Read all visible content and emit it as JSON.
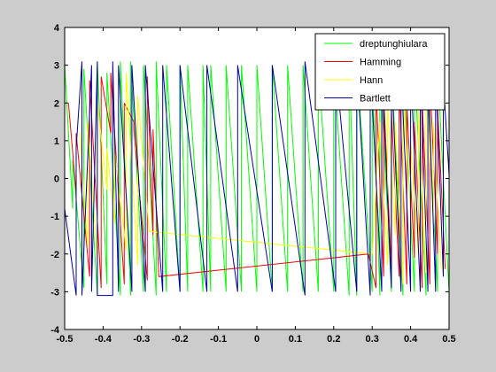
{
  "chart_data": {
    "type": "line",
    "title": "",
    "xlabel": "",
    "ylabel": "",
    "xlim": [
      -0.5,
      0.5
    ],
    "ylim": [
      -4,
      4
    ],
    "xticks": [
      -0.5,
      -0.4,
      -0.3,
      -0.2,
      -0.1,
      0,
      0.1,
      0.2,
      0.3,
      0.4,
      0.5
    ],
    "xtick_labels": [
      "-0.5",
      "-0.4",
      "-0.3",
      "-0.2",
      "-0.1",
      "0",
      "0.1",
      "0.2",
      "0.3",
      "0.4",
      "0.5"
    ],
    "yticks": [
      -4,
      -3,
      -2,
      -1,
      0,
      1,
      2,
      3,
      4
    ],
    "ytick_labels": [
      "-4",
      "-3",
      "-2",
      "-1",
      "0",
      "1",
      "2",
      "3",
      "4"
    ],
    "grid": false,
    "legend_position": "top-right",
    "background": "#cccccc",
    "axes_background": "#ffffff",
    "series": [
      {
        "name": "dreptunghiulara",
        "color": "#00ff00",
        "x": [
          -0.5,
          -0.479,
          -0.479,
          -0.45,
          -0.45,
          -0.415,
          -0.415,
          -0.39,
          -0.39,
          -0.355,
          -0.355,
          -0.328,
          -0.328,
          -0.295,
          -0.295,
          -0.262,
          -0.262,
          -0.235,
          -0.235,
          -0.2,
          -0.2,
          -0.18,
          -0.18,
          -0.14,
          -0.14,
          -0.12,
          -0.12,
          -0.08,
          -0.08,
          -0.04,
          -0.04,
          0,
          0,
          0.04,
          0.04,
          0.08,
          0.08,
          0.12,
          0.12,
          0.16,
          0.16,
          0.2,
          0.2,
          0.24,
          0.24,
          0.26,
          0.26,
          0.3,
          0.3,
          0.32,
          0.32,
          0.35,
          0.35,
          0.38,
          0.38,
          0.41,
          0.41,
          0.44,
          0.44,
          0.47,
          0.47,
          0.5
        ],
        "y": [
          3.0,
          -0.8,
          0.5,
          -2.9,
          2.9,
          -3.1,
          3.1,
          -2.8,
          2.8,
          -3.1,
          3.1,
          -3.1,
          3.1,
          -3.0,
          3.0,
          -3.1,
          3.1,
          -3.0,
          3.0,
          -3.0,
          3.0,
          -3.0,
          3.0,
          -3.0,
          3.0,
          -3.0,
          3.0,
          -3.0,
          3.0,
          -3.0,
          3.0,
          -3.0,
          3.0,
          -3.0,
          3.0,
          -3.0,
          3.0,
          -3.0,
          3.0,
          -3.0,
          3.0,
          -3.0,
          3.0,
          -3.1,
          3.1,
          -3.1,
          3.1,
          -3.0,
          3.0,
          -3.1,
          3.1,
          -3.0,
          3.0,
          -3.1,
          3.1,
          -3.0,
          3.0,
          -3.1,
          3.1,
          -3.0,
          3.0,
          -3.0
        ]
      },
      {
        "name": "Hamming",
        "color": "#ff0000",
        "x": [
          -0.49,
          -0.47,
          -0.47,
          -0.435,
          -0.435,
          -0.405,
          -0.405,
          -0.38,
          -0.38,
          -0.345,
          -0.345,
          -0.32,
          -0.32,
          -0.285,
          -0.285,
          -0.27,
          -0.27,
          -0.255,
          0.29,
          0.31,
          0.31,
          0.33,
          0.33,
          0.35,
          0.35,
          0.37,
          0.37,
          0.39,
          0.39,
          0.41,
          0.41,
          0.43,
          0.43,
          0.45,
          0.45,
          0.47,
          0.47,
          0.49
        ],
        "y": [
          2.0,
          -0.4,
          1.2,
          -2.6,
          2.6,
          -2.9,
          2.7,
          1.2,
          2.8,
          -2.8,
          2.0,
          1.5,
          1.3,
          -2.7,
          2.7,
          -1.5,
          1.3,
          -2.6,
          -2.0,
          -2.9,
          2.5,
          -2.6,
          2.2,
          -2.4,
          1.8,
          -2.6,
          2.6,
          -2.8,
          2.0,
          -2.1,
          1.5,
          -2.9,
          2.1,
          -2.8,
          2.7,
          -2.0,
          1.9,
          -2.4
        ]
      },
      {
        "name": "Hann",
        "color": "#ffff00",
        "x": [
          -0.46,
          -0.44,
          -0.44,
          -0.415,
          -0.415,
          -0.39,
          -0.39,
          -0.37,
          -0.37,
          -0.34,
          -0.34,
          -0.31,
          -0.31,
          -0.28,
          0.3,
          0.32,
          0.32,
          0.34,
          0.34,
          0.36,
          0.36,
          0.38,
          0.38,
          0.4,
          0.4,
          0.42,
          0.42,
          0.44,
          0.44,
          0.46,
          0.46,
          0.48
        ],
        "y": [
          1.2,
          -1.8,
          1.5,
          -2.2,
          2.0,
          -0.3,
          0.8,
          -1.2,
          0.8,
          -1.9,
          2.8,
          -2.3,
          2.2,
          -1.4,
          -2.0,
          1.5,
          1.2,
          -2.3,
          2.0,
          -1.5,
          1.5,
          -2.8,
          2.3,
          -1.0,
          1.0,
          -2.0,
          1.8,
          -2.5,
          2.6,
          -1.2,
          1.5,
          -2.4
        ]
      },
      {
        "name": "Bartlett",
        "color": "#0000aa",
        "x": [
          -0.5,
          -0.47,
          -0.47,
          -0.455,
          -0.455,
          -0.43,
          -0.43,
          -0.415,
          -0.415,
          -0.375,
          -0.375,
          -0.36,
          -0.36,
          -0.325,
          -0.325,
          -0.29,
          -0.29,
          -0.245,
          -0.245,
          -0.2,
          -0.2,
          -0.13,
          -0.13,
          -0.05,
          -0.05,
          0.04,
          0.04,
          0.125,
          0.125,
          0.205,
          0.205,
          0.26,
          0.26,
          0.295,
          0.295,
          0.325,
          0.325,
          0.35,
          0.35,
          0.375,
          0.375,
          0.4,
          0.4,
          0.425,
          0.425,
          0.445,
          0.445,
          0.465,
          0.465,
          0.485,
          0.485,
          0.5
        ],
        "y": [
          -0.8,
          -3.1,
          0.8,
          3.1,
          -3.1,
          3.0,
          -3.0,
          3.1,
          -3.1,
          -3.1,
          3.1,
          -3.0,
          3.0,
          -3.0,
          3.0,
          -3.0,
          3.0,
          -3.0,
          3.0,
          -3.0,
          3.0,
          -3.0,
          3.0,
          -3.0,
          3.0,
          -3.0,
          3.0,
          -3.1,
          3.1,
          -3.0,
          3.0,
          -3.0,
          3.0,
          -3.1,
          3.1,
          -3.0,
          3.0,
          -2.9,
          2.9,
          -3.0,
          3.0,
          -3.0,
          3.0,
          -3.0,
          3.0,
          -3.0,
          3.0,
          -3.0,
          3.0,
          -2.6,
          2.6,
          0.1
        ]
      }
    ]
  }
}
